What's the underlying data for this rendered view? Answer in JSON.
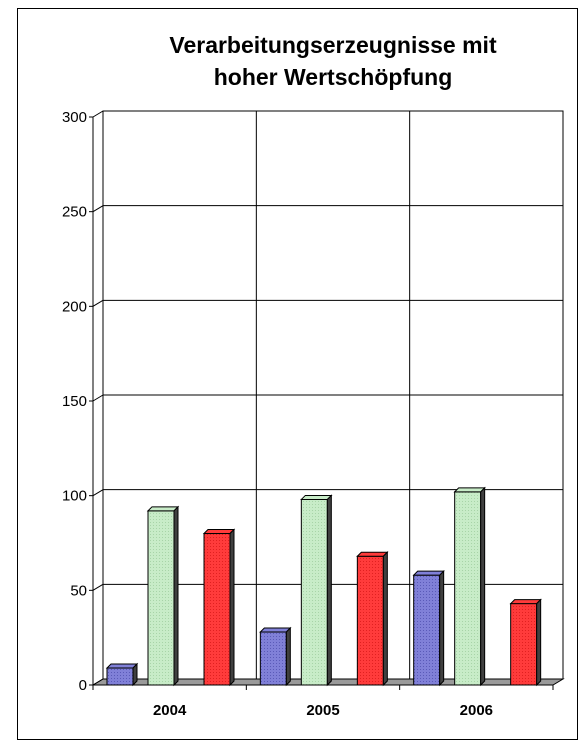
{
  "chart_data": {
    "type": "bar",
    "title_lines": [
      "Verarbeitungserzeugnisse mit",
      "hoher Wertschöpfung"
    ],
    "categories": [
      "2004",
      "2005",
      "2006"
    ],
    "series": [
      {
        "values": [
          9,
          28,
          58
        ],
        "color": "#8080d8"
      },
      {
        "values": [
          92,
          98,
          102
        ],
        "color": "#c8ecc8"
      },
      {
        "values": [
          80,
          68,
          43
        ],
        "color": "#ff3b3b"
      }
    ],
    "ylim": [
      0,
      300
    ],
    "yticks": [
      0,
      50,
      100,
      150,
      200,
      250,
      300
    ],
    "grid": true,
    "style": "3d-bar"
  }
}
